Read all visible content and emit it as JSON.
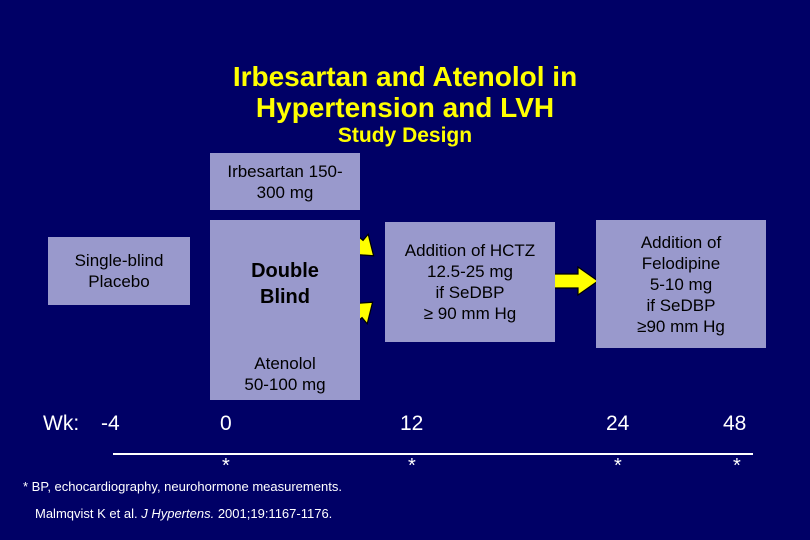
{
  "title": {
    "line1": "Irbesartan and Atenolol in",
    "line2": "Hypertension and LVH",
    "subtitle": "Study Design"
  },
  "boxes": {
    "irbesartan": "Irbesartan 150-\n300 mg",
    "placebo": "Single-blind\nPlacebo",
    "double_blind": "Double\nBlind",
    "hctz": "Addition of HCTZ\n12.5-25 mg\nif SeDBP\n≥ 90 mm Hg",
    "felodipine": "Addition of\nFelodipine\n5-10 mg\nif SeDBP\n≥90 mm Hg",
    "atenolol": "Atenolol\n50-100 mg"
  },
  "timeline": {
    "label": "Wk:",
    "weeks": [
      "-4",
      "0",
      "12",
      "24",
      "48"
    ],
    "marker": "*"
  },
  "footnote": "* BP, echocardiography, neurohormone measurements.",
  "citation": {
    "authors": "Malmqvist K et al.",
    "journal": "J Hypertens.",
    "details": "2001;19:1167-1176."
  },
  "colors": {
    "background": "#000066",
    "title": "#ffff00",
    "box": "#9999cc",
    "arrow_fill": "#ffff00",
    "arrow_stroke": "#000000"
  }
}
